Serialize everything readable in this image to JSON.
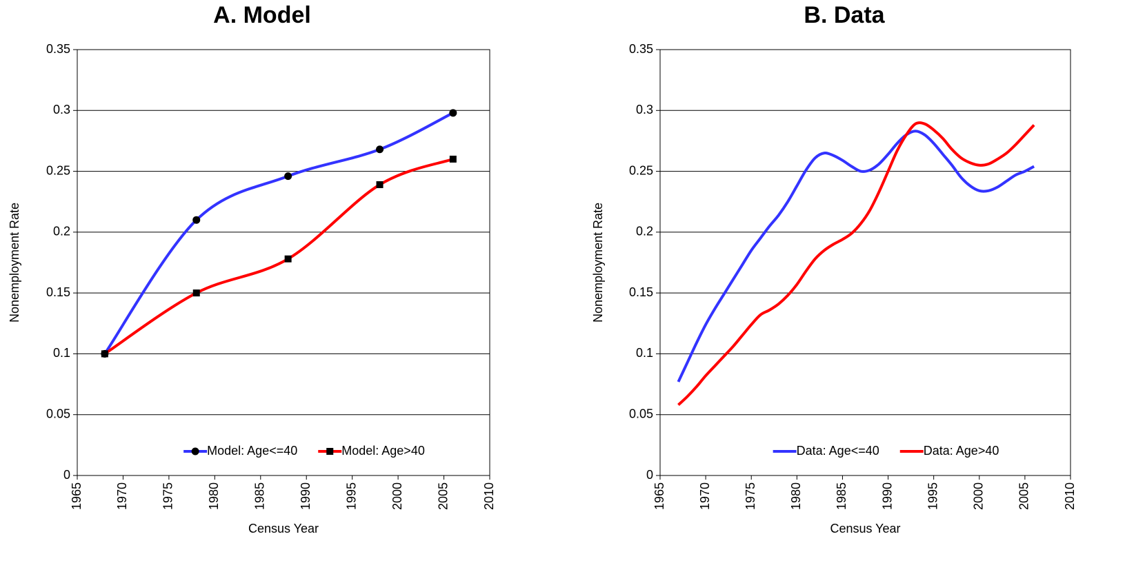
{
  "chart_data": [
    {
      "type": "line",
      "title": "A. Model",
      "xlabel": "Census Year",
      "ylabel": "Nonemployment Rate",
      "xlim": [
        1965,
        2010
      ],
      "xticks": [
        1965,
        1970,
        1975,
        1980,
        1985,
        1990,
        1995,
        2000,
        2005,
        2010
      ],
      "ylim": [
        0,
        0.35
      ],
      "yticks": [
        0,
        0.05,
        0.1,
        0.15,
        0.2,
        0.25,
        0.3,
        0.35
      ],
      "grid": true,
      "legend": "bottom",
      "x": [
        1968,
        1978,
        1988,
        1998,
        2006
      ],
      "series": [
        {
          "name": "Model: Age<=40",
          "color": "#3333ff",
          "marker": "circle",
          "values": [
            0.1,
            0.21,
            0.246,
            0.268,
            0.298
          ]
        },
        {
          "name": "Model: Age>40",
          "color": "#ff0000",
          "marker": "square",
          "values": [
            0.1,
            0.15,
            0.178,
            0.239,
            0.26
          ]
        }
      ]
    },
    {
      "type": "line",
      "title": "B. Data",
      "xlabel": "Census Year",
      "ylabel": "Nonemployment Rate",
      "xlim": [
        1965,
        2010
      ],
      "xticks": [
        1965,
        1970,
        1975,
        1980,
        1985,
        1990,
        1995,
        2000,
        2005,
        2010
      ],
      "ylim": [
        0,
        0.35
      ],
      "yticks": [
        0,
        0.05,
        0.1,
        0.15,
        0.2,
        0.25,
        0.3,
        0.35
      ],
      "grid": true,
      "legend": "bottom",
      "x": [
        1967,
        1968,
        1969,
        1970,
        1971,
        1972,
        1973,
        1974,
        1975,
        1976,
        1977,
        1978,
        1979,
        1980,
        1981,
        1982,
        1983,
        1984,
        1985,
        1986,
        1987,
        1988,
        1989,
        1990,
        1991,
        1992,
        1993,
        1994,
        1995,
        1996,
        1997,
        1998,
        1999,
        2000,
        2001,
        2002,
        2003,
        2004,
        2005,
        2006
      ],
      "series": [
        {
          "name": "Data: Age<=40",
          "color": "#3333ff",
          "values": [
            0.077,
            0.093,
            0.109,
            0.124,
            0.137,
            0.149,
            0.161,
            0.173,
            0.185,
            0.195,
            0.205,
            0.214,
            0.225,
            0.238,
            0.251,
            0.261,
            0.265,
            0.263,
            0.259,
            0.254,
            0.25,
            0.251,
            0.256,
            0.264,
            0.273,
            0.28,
            0.283,
            0.28,
            0.273,
            0.264,
            0.255,
            0.245,
            0.238,
            0.234,
            0.234,
            0.237,
            0.242,
            0.247,
            0.25,
            0.254
          ]
        },
        {
          "name": "Data: Age>40",
          "color": "#ff0000",
          "values": [
            0.058,
            0.065,
            0.073,
            0.082,
            0.09,
            0.098,
            0.106,
            0.115,
            0.124,
            0.132,
            0.136,
            0.141,
            0.148,
            0.157,
            0.168,
            0.178,
            0.185,
            0.19,
            0.194,
            0.199,
            0.207,
            0.218,
            0.233,
            0.25,
            0.267,
            0.28,
            0.289,
            0.289,
            0.284,
            0.277,
            0.268,
            0.261,
            0.257,
            0.255,
            0.256,
            0.26,
            0.265,
            0.272,
            0.28,
            0.288
          ]
        }
      ]
    }
  ]
}
